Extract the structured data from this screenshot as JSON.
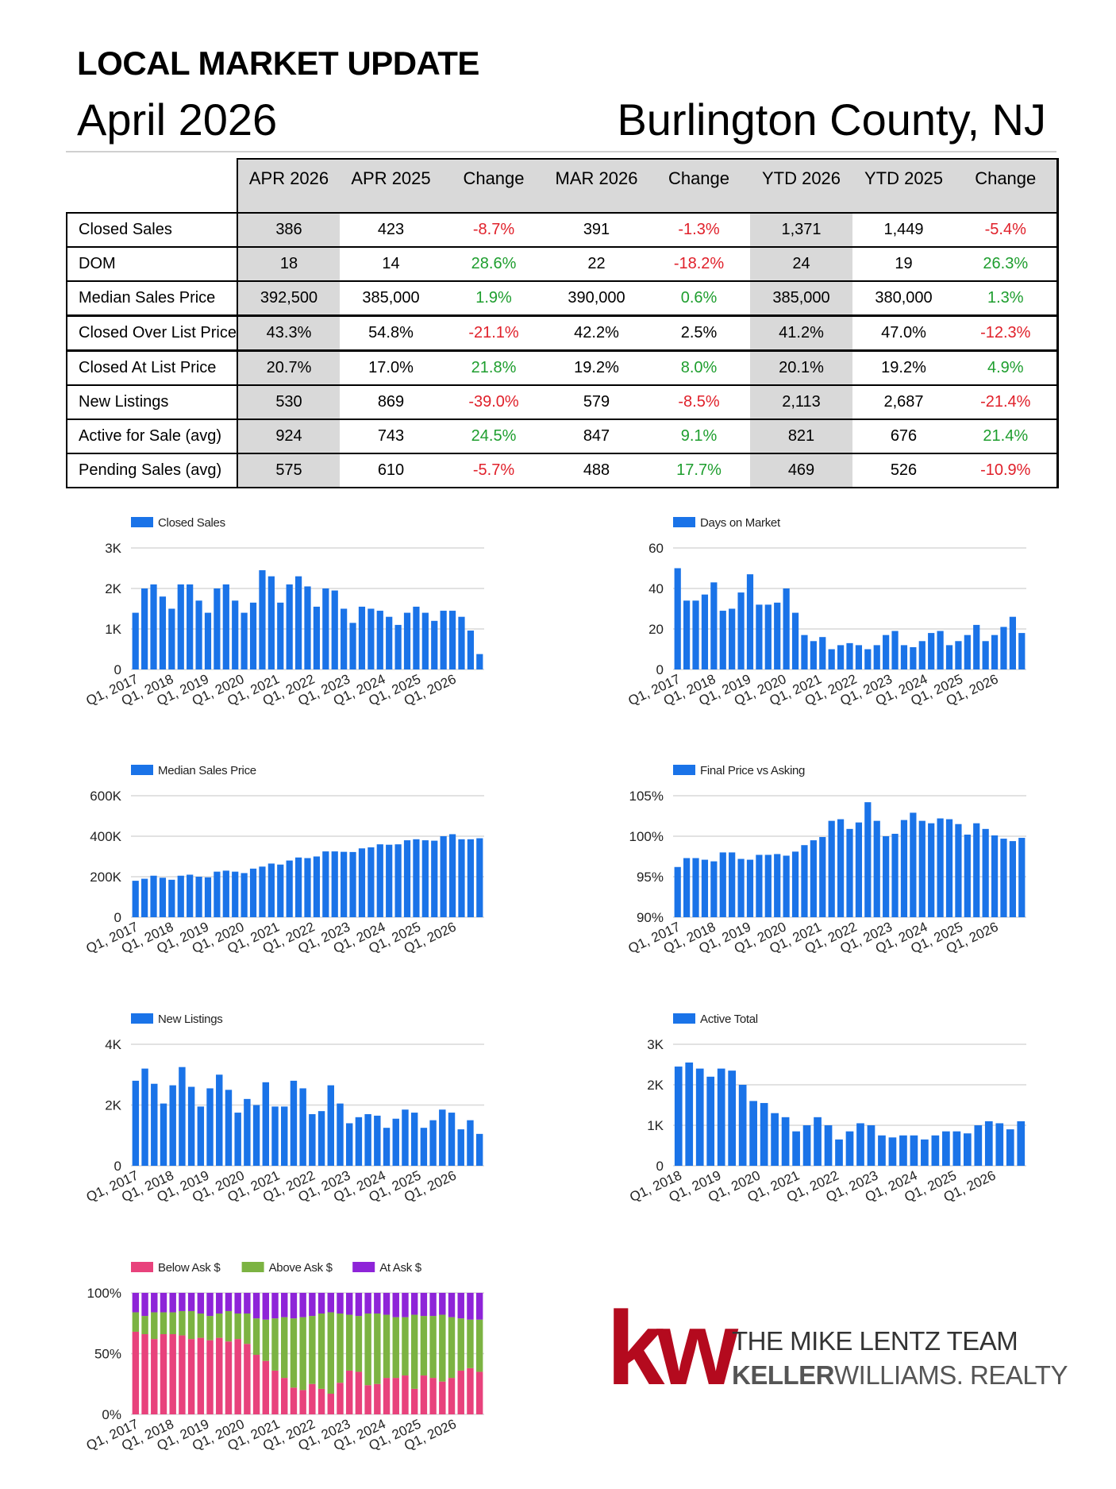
{
  "header": {
    "title": "LOCAL MARKET UPDATE",
    "month": "April 2026",
    "county": "Burlington County, NJ"
  },
  "table": {
    "columns": [
      "APR 2026",
      "APR 2025",
      "Change",
      "MAR 2026",
      "Change",
      "YTD 2026",
      "YTD 2025",
      "Change"
    ],
    "rows": [
      {
        "label": "Closed Sales",
        "cells": [
          "386",
          "423",
          "-8.7%",
          "391",
          "-1.3%",
          "1,371",
          "1,449",
          "-5.4%"
        ],
        "tones": [
          "neg",
          "neg",
          "neg"
        ]
      },
      {
        "label": "DOM",
        "cells": [
          "18",
          "14",
          "28.6%",
          "22",
          "-18.2%",
          "24",
          "19",
          "26.3%"
        ],
        "tones": [
          "pos",
          "neg",
          "pos"
        ]
      },
      {
        "label": "Median Sales Price",
        "cells": [
          "392,500",
          "385,000",
          "1.9%",
          "390,000",
          "0.6%",
          "385,000",
          "380,000",
          "1.3%"
        ],
        "tones": [
          "pos",
          "pos",
          "pos"
        ]
      },
      {
        "label": "Closed Over List Price",
        "cells": [
          "43.3%",
          "54.8%",
          "-21.1%",
          "42.2%",
          "2.5%",
          "41.2%",
          "47.0%",
          "-12.3%"
        ],
        "tones": [
          "neg",
          "neu",
          "neg"
        ]
      },
      {
        "label": "Closed At List Price",
        "cells": [
          "20.7%",
          "17.0%",
          "21.8%",
          "19.2%",
          "8.0%",
          "20.1%",
          "19.2%",
          "4.9%"
        ],
        "tones": [
          "pos",
          "pos",
          "pos"
        ]
      },
      {
        "label": "New Listings",
        "cells": [
          "530",
          "869",
          "-39.0%",
          "579",
          "-8.5%",
          "2,113",
          "2,687",
          "-21.4%"
        ],
        "tones": [
          "neg",
          "neg",
          "neg"
        ]
      },
      {
        "label": "Active for Sale (avg)",
        "cells": [
          "924",
          "743",
          "24.5%",
          "847",
          "9.1%",
          "821",
          "676",
          "21.4%"
        ],
        "tones": [
          "pos",
          "pos",
          "pos"
        ]
      },
      {
        "label": "Pending Sales (avg)",
        "cells": [
          "575",
          "610",
          "-5.7%",
          "488",
          "17.7%",
          "469",
          "526",
          "-10.9%"
        ],
        "tones": [
          "neg",
          "pos",
          "neg"
        ]
      }
    ]
  },
  "colors": {
    "bar": "#1a73e8",
    "grid": "#d8d8d8",
    "positive": "#1e9e2e",
    "negative": "#e0202a",
    "below_ask": "#e8427c",
    "above_ask": "#7cb342",
    "at_ask": "#8e24d8",
    "kw_red": "#b40a1e"
  },
  "chart_data": [
    {
      "type": "bar",
      "legend": [
        "Closed Sales"
      ],
      "x_tick_labels": [
        "Q1, 2017",
        "Q1, 2018",
        "Q1, 2019",
        "Q1, 2020",
        "Q1, 2021",
        "Q1, 2022",
        "Q1, 2023",
        "Q1, 2024",
        "Q1, 2025",
        "Q1, 2026"
      ],
      "y_tick_labels": [
        "0",
        "1K",
        "2K",
        "3K"
      ],
      "ylim": [
        0,
        3000
      ],
      "values": [
        1400,
        2000,
        2100,
        1800,
        1500,
        2100,
        2100,
        1700,
        1400,
        2000,
        2100,
        1700,
        1400,
        1650,
        2450,
        2300,
        1650,
        2100,
        2300,
        2050,
        1550,
        2000,
        1950,
        1500,
        1150,
        1550,
        1500,
        1450,
        1300,
        1100,
        1400,
        1550,
        1400,
        1200,
        1450,
        1450,
        1300,
        960,
        380
      ]
    },
    {
      "type": "bar",
      "legend": [
        "Days on Market"
      ],
      "x_tick_labels": [
        "Q1, 2017",
        "Q1, 2018",
        "Q1, 2019",
        "Q1, 2020",
        "Q1, 2021",
        "Q1, 2022",
        "Q1, 2023",
        "Q1, 2024",
        "Q1, 2025",
        "Q1, 2026"
      ],
      "y_tick_labels": [
        "0",
        "20",
        "40",
        "60"
      ],
      "ylim": [
        0,
        60
      ],
      "values": [
        50,
        34,
        34,
        37,
        43,
        29,
        30,
        38,
        47,
        32,
        32,
        33,
        40,
        28,
        17,
        14,
        16,
        10,
        12,
        13,
        12,
        10,
        12,
        17,
        19,
        12,
        11,
        14,
        18,
        19,
        12,
        14,
        17,
        22,
        14,
        17,
        21,
        26,
        18
      ]
    },
    {
      "type": "bar",
      "legend": [
        "Median Sales Price"
      ],
      "x_tick_labels": [
        "Q1, 2017",
        "Q1, 2018",
        "Q1, 2019",
        "Q1, 2020",
        "Q1, 2021",
        "Q1, 2022",
        "Q1, 2023",
        "Q1, 2024",
        "Q1, 2025",
        "Q1, 2026"
      ],
      "y_tick_labels": [
        "0",
        "200K",
        "400K",
        "600K"
      ],
      "ylim": [
        0,
        600000
      ],
      "values": [
        180000,
        190000,
        205000,
        195000,
        185000,
        205000,
        210000,
        200000,
        197000,
        225000,
        230000,
        225000,
        218000,
        240000,
        250000,
        265000,
        260000,
        280000,
        295000,
        292000,
        300000,
        325000,
        325000,
        323000,
        322000,
        340000,
        345000,
        360000,
        358000,
        360000,
        380000,
        385000,
        380000,
        378000,
        400000,
        410000,
        385000,
        385000,
        390000
      ]
    },
    {
      "type": "bar",
      "legend": [
        "Final Price vs Asking"
      ],
      "x_tick_labels": [
        "Q1, 2017",
        "Q1, 2018",
        "Q1, 2019",
        "Q1, 2020",
        "Q1, 2021",
        "Q1, 2022",
        "Q1, 2023",
        "Q1, 2024",
        "Q1, 2025",
        "Q1, 2026"
      ],
      "y_tick_labels": [
        "90%",
        "95%",
        "100%",
        "105%"
      ],
      "ylim": [
        90,
        105
      ],
      "values": [
        96.2,
        97.3,
        97.3,
        97.1,
        96.9,
        98.0,
        98.0,
        97.2,
        97.1,
        97.7,
        97.7,
        97.8,
        97.6,
        98.1,
        98.9,
        99.5,
        99.9,
        101.9,
        102.1,
        100.9,
        101.7,
        104.2,
        101.9,
        100.0,
        100.3,
        102.0,
        102.9,
        101.9,
        101.6,
        102.2,
        102.1,
        101.5,
        100.2,
        101.6,
        100.9,
        100.1,
        99.7,
        99.4,
        99.8
      ]
    },
    {
      "type": "bar",
      "legend": [
        "New Listings"
      ],
      "x_tick_labels": [
        "Q1, 2017",
        "Q1, 2018",
        "Q1, 2019",
        "Q1, 2020",
        "Q1, 2021",
        "Q1, 2022",
        "Q1, 2023",
        "Q1, 2024",
        "Q1, 2025",
        "Q1, 2026"
      ],
      "y_tick_labels": [
        "0",
        "2K",
        "4K"
      ],
      "ylim": [
        0,
        4000
      ],
      "values": [
        2800,
        3200,
        2700,
        2050,
        2650,
        3250,
        2600,
        1950,
        2550,
        3000,
        2500,
        1750,
        2200,
        2000,
        2750,
        1950,
        1950,
        2800,
        2550,
        1700,
        1800,
        2650,
        2050,
        1400,
        1600,
        1700,
        1650,
        1250,
        1550,
        1850,
        1750,
        1250,
        1500,
        1850,
        1750,
        1200,
        1500,
        1050
      ]
    },
    {
      "type": "bar",
      "legend": [
        "Active Total"
      ],
      "x_tick_labels": [
        "Q1, 2018",
        "Q1, 2019",
        "Q1, 2020",
        "Q1, 2021",
        "Q1, 2022",
        "Q1, 2023",
        "Q1, 2024",
        "Q1, 2025",
        "Q1, 2026"
      ],
      "y_tick_labels": [
        "0",
        "1K",
        "2K",
        "3K"
      ],
      "ylim": [
        0,
        3000
      ],
      "values": [
        2450,
        2550,
        2400,
        2200,
        2400,
        2350,
        2000,
        1600,
        1550,
        1300,
        1200,
        850,
        1000,
        1200,
        1000,
        650,
        850,
        1050,
        1000,
        750,
        700,
        750,
        750,
        650,
        750,
        850,
        850,
        800,
        1000,
        1100,
        1050,
        900,
        1100
      ]
    },
    {
      "type": "bar",
      "stacked": true,
      "legend": [
        "Below Ask $",
        "Above Ask $",
        "At Ask $"
      ],
      "x_tick_labels": [
        "Q1, 2017",
        "Q1, 2018",
        "Q1, 2019",
        "Q1, 2020",
        "Q1, 2021",
        "Q1, 2022",
        "Q1, 2023",
        "Q1, 2024",
        "Q1, 2025",
        "Q1, 2026"
      ],
      "y_tick_labels": [
        "0%",
        "50%",
        "100%"
      ],
      "ylim": [
        0,
        100
      ],
      "series": [
        {
          "name": "Below Ask $",
          "values": [
            68,
            66,
            62,
            66,
            66,
            65,
            62,
            63,
            61,
            63,
            60,
            62,
            58,
            49,
            44,
            36,
            30,
            22,
            20,
            25,
            21,
            17,
            26,
            36,
            35,
            24,
            25,
            30,
            30,
            32,
            21,
            32,
            30,
            27,
            30,
            36,
            38,
            35
          ]
        },
        {
          "name": "Above Ask $",
          "values": [
            16,
            15,
            22,
            18,
            18,
            20,
            23,
            20,
            20,
            20,
            25,
            21,
            25,
            30,
            34,
            43,
            50,
            57,
            60,
            56,
            62,
            67,
            57,
            46,
            46,
            59,
            58,
            52,
            50,
            48,
            61,
            49,
            51,
            55,
            50,
            43,
            40,
            43
          ]
        },
        {
          "name": "At Ask $",
          "values": [
            16,
            19,
            16,
            16,
            16,
            15,
            15,
            17,
            19,
            17,
            15,
            17,
            17,
            21,
            22,
            21,
            20,
            21,
            20,
            19,
            17,
            16,
            17,
            18,
            19,
            17,
            17,
            18,
            20,
            20,
            18,
            19,
            19,
            18,
            20,
            21,
            22,
            22
          ]
        }
      ]
    }
  ],
  "logo": {
    "monogram": "kw",
    "team": "THE MIKE LENTZ TEAM",
    "brand_bold": "KELLER",
    "brand_rest": "WILLIAMS.",
    "brand_suffix": "REALTY"
  }
}
